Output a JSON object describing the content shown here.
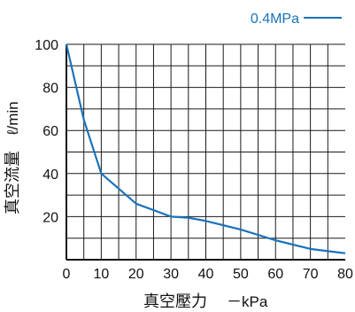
{
  "chart_data": {
    "type": "line",
    "xlabel_main": "真空壓力",
    "xlabel_unit": "－kPa",
    "ylabel_main": "真空流量",
    "ylabel_unit": "ℓ/min",
    "xlim": [
      0,
      80
    ],
    "ylim": [
      0,
      100
    ],
    "x_ticks": [
      0,
      10,
      20,
      30,
      40,
      50,
      60,
      70,
      80
    ],
    "y_ticks": [
      20,
      40,
      60,
      80,
      100
    ],
    "grid": true,
    "legend_position": "top-right",
    "series": [
      {
        "name": "0.4MPa",
        "color": "#1a72bb",
        "x": [
          0,
          5,
          10,
          20,
          30,
          35,
          40,
          50,
          60,
          70,
          80
        ],
        "y": [
          100,
          65,
          40,
          26,
          20,
          19.5,
          18,
          14,
          9,
          5,
          3
        ]
      }
    ]
  }
}
